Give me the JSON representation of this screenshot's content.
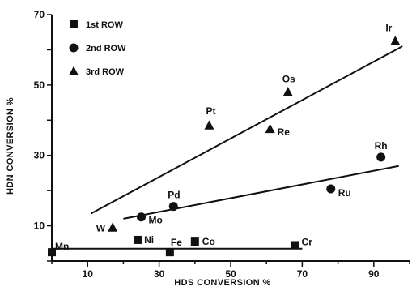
{
  "chart_data": {
    "type": "scatter",
    "xlabel": "HDS CONVERSION %",
    "ylabel": "HDN CONVERSION %",
    "xlim": [
      0,
      100
    ],
    "ylim": [
      0,
      70
    ],
    "xticks": [
      10,
      30,
      50,
      70,
      90
    ],
    "yticks": [
      10,
      30,
      50,
      70
    ],
    "grid": false,
    "legend_position": "top-left",
    "series": [
      {
        "name": "1st ROW",
        "marker": "square",
        "points": [
          {
            "label": "Mn",
            "x": 0,
            "y": 2.5
          },
          {
            "label": "Ni",
            "x": 24,
            "y": 6
          },
          {
            "label": "Fe",
            "x": 33,
            "y": 2.5
          },
          {
            "label": "Co",
            "x": 40,
            "y": 5.5
          },
          {
            "label": "Cr",
            "x": 68,
            "y": 4.5
          }
        ]
      },
      {
        "name": "2nd ROW",
        "marker": "circle",
        "points": [
          {
            "label": "Mo",
            "x": 25,
            "y": 12.5
          },
          {
            "label": "Pd",
            "x": 34,
            "y": 15.5
          },
          {
            "label": "Ru",
            "x": 78,
            "y": 20.5
          },
          {
            "label": "Rh",
            "x": 92,
            "y": 29.5
          }
        ]
      },
      {
        "name": "3rd ROW",
        "marker": "triangle",
        "points": [
          {
            "label": "W",
            "x": 17,
            "y": 9.5
          },
          {
            "label": "Pt",
            "x": 44,
            "y": 38.5
          },
          {
            "label": "Re",
            "x": 61,
            "y": 37.5
          },
          {
            "label": "Os",
            "x": 66,
            "y": 48
          },
          {
            "label": "Ir",
            "x": 96,
            "y": 62.5
          }
        ]
      }
    ],
    "fit_lines": [
      {
        "series": "1st ROW",
        "x": [
          0,
          70
        ],
        "y": [
          3.5,
          3.5
        ]
      },
      {
        "series": "2nd ROW",
        "x": [
          20,
          97
        ],
        "y": [
          12,
          27
        ]
      },
      {
        "series": "3rd ROW",
        "x": [
          11,
          98
        ],
        "y": [
          13.5,
          61
        ]
      }
    ]
  }
}
